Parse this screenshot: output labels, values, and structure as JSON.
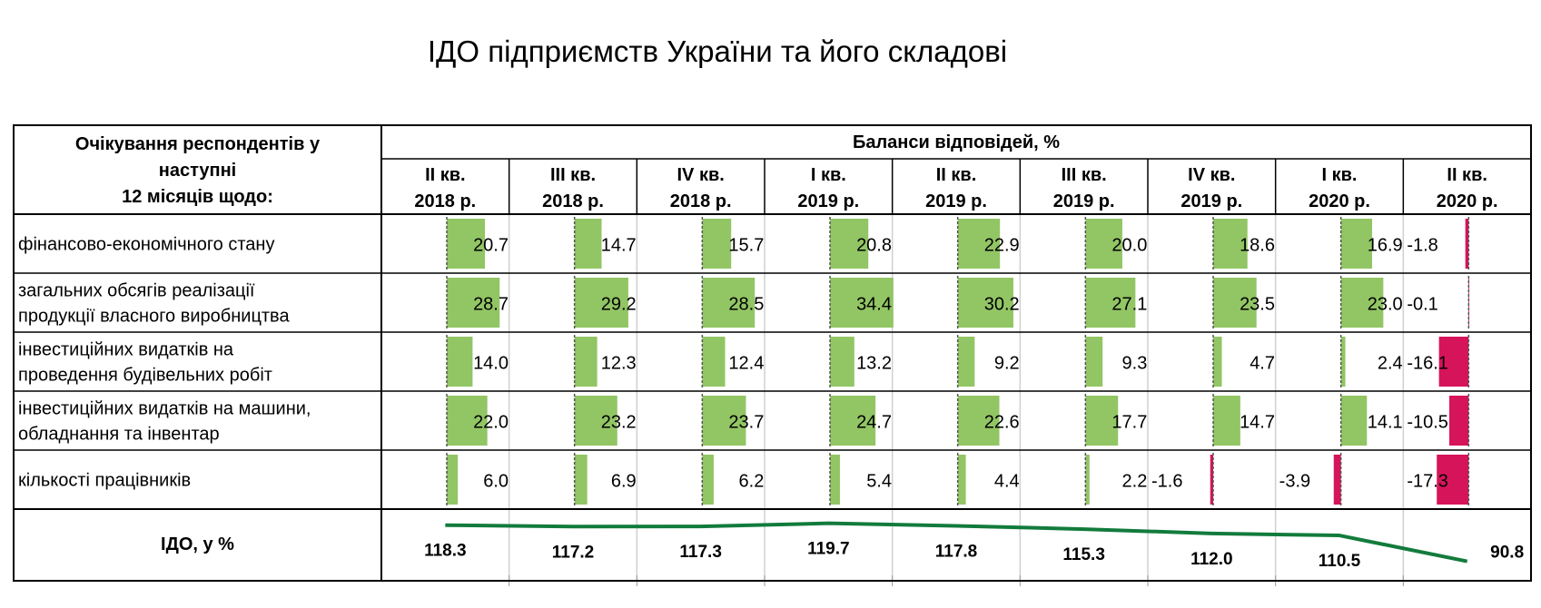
{
  "title": "ІДО підприємств України та його складові",
  "colors": {
    "positive": "#92c564",
    "negative": "#d6145a",
    "line": "#127b3c",
    "grid": "#d0d0d0",
    "border": "#000000"
  },
  "chart_data": {
    "type": "table",
    "title": "ІДО підприємств України та його складові",
    "row_header": [
      "Очікування респондентів у",
      "наступні",
      "12 місяців щодо:"
    ],
    "group_header": "Баланси відповідей, %",
    "columns": [
      [
        "II кв.",
        "2018 р."
      ],
      [
        "III кв.",
        "2018 р."
      ],
      [
        "IV кв.",
        "2018 р."
      ],
      [
        "I кв.",
        "2019 р."
      ],
      [
        "II кв.",
        "2019 р."
      ],
      [
        "III кв.",
        "2019 р."
      ],
      [
        "IV кв.",
        "2019 р."
      ],
      [
        "I кв.",
        "2020 р."
      ],
      [
        "II кв.",
        "2020 р."
      ]
    ],
    "series": [
      {
        "name": [
          "фінансово-економічного стану"
        ],
        "values": [
          20.7,
          14.7,
          15.7,
          20.8,
          22.9,
          20.0,
          18.6,
          16.9,
          -1.8
        ]
      },
      {
        "name": [
          "загальних обсягів реалізації",
          "продукції власного виробництва"
        ],
        "values": [
          28.7,
          29.2,
          28.5,
          34.4,
          30.2,
          27.1,
          23.5,
          23.0,
          -0.1
        ]
      },
      {
        "name": [
          "інвестиційних видатків на",
          "проведення будівельних робіт"
        ],
        "values": [
          14.0,
          12.3,
          12.4,
          13.2,
          9.2,
          9.3,
          4.7,
          2.4,
          -16.1
        ]
      },
      {
        "name": [
          "інвестиційних видатків на машини,",
          "обладнання та інвентар"
        ],
        "values": [
          22.0,
          23.2,
          23.7,
          24.7,
          22.6,
          17.7,
          14.7,
          14.1,
          -10.5
        ]
      },
      {
        "name": [
          "кількості працівників"
        ],
        "values": [
          6.0,
          6.9,
          6.2,
          5.4,
          4.4,
          2.2,
          -1.6,
          -3.9,
          -17.3
        ]
      }
    ],
    "index_row": {
      "name": "ІДО, у %",
      "type": "line",
      "values": [
        118.3,
        117.2,
        117.3,
        119.7,
        117.8,
        115.3,
        112.0,
        110.5,
        90.8
      ],
      "yrange": [
        85,
        125
      ]
    }
  }
}
